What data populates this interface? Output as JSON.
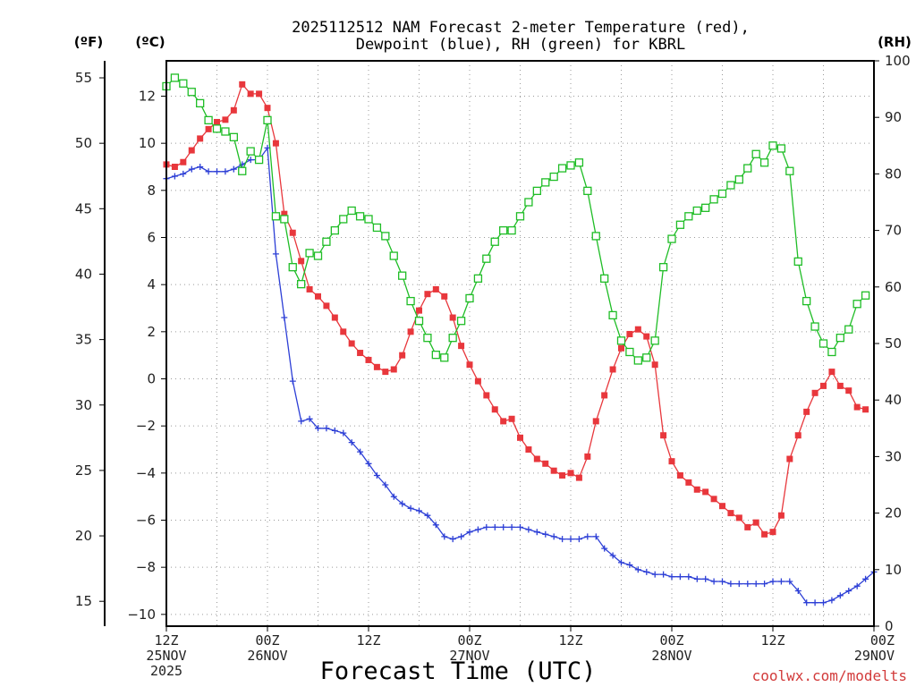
{
  "chart_data": {
    "type": "line",
    "title": [
      "2025112512 NAM Forecast 2-meter Temperature (red),",
      "Dewpoint (blue), RH (green) for KBRL"
    ],
    "xlabel": "Forecast Time (UTC)",
    "units": {
      "fahrenheit": "(ºF)",
      "celsius": "(ºC)",
      "rh": "(RH)"
    },
    "credit": "coolwx.com/modelts",
    "x_hours_range": [
      0,
      84
    ],
    "x_ticks": [
      {
        "hour": 0,
        "lines": [
          "12Z",
          "25NOV",
          "2025"
        ]
      },
      {
        "hour": 12,
        "lines": [
          "00Z",
          "26NOV"
        ]
      },
      {
        "hour": 24,
        "lines": [
          "12Z"
        ]
      },
      {
        "hour": 36,
        "lines": [
          "00Z",
          "27NOV"
        ]
      },
      {
        "hour": 48,
        "lines": [
          "12Z"
        ]
      },
      {
        "hour": 60,
        "lines": [
          "00Z",
          "28NOV"
        ]
      },
      {
        "hour": 72,
        "lines": [
          "12Z"
        ]
      },
      {
        "hour": 84,
        "lines": [
          "00Z",
          "29NOV"
        ]
      }
    ],
    "celsius_axis": {
      "range": [
        -10.5,
        13.5
      ],
      "ticks": [
        -10,
        -8,
        -6,
        -4,
        -2,
        0,
        2,
        4,
        6,
        8,
        10,
        12
      ]
    },
    "fahrenheit_axis": {
      "ticks": [
        15,
        20,
        25,
        30,
        35,
        40,
        45,
        50,
        55
      ]
    },
    "rh_axis": {
      "range": [
        0,
        100
      ],
      "ticks": [
        0,
        10,
        20,
        30,
        40,
        50,
        60,
        70,
        80,
        90,
        100
      ]
    },
    "series": [
      {
        "name": "2-meter Temperature",
        "unit": "°C",
        "color": "#e8373c",
        "marker": "filled-square",
        "values": [
          [
            0,
            9.1
          ],
          [
            1,
            9.0
          ],
          [
            2,
            9.2
          ],
          [
            3,
            9.7
          ],
          [
            4,
            10.2
          ],
          [
            5,
            10.6
          ],
          [
            6,
            10.9
          ],
          [
            7,
            11.0
          ],
          [
            8,
            11.4
          ],
          [
            9,
            12.5
          ],
          [
            10,
            12.1
          ],
          [
            11,
            12.1
          ],
          [
            12,
            11.5
          ],
          [
            13,
            10.0
          ],
          [
            14,
            7.0
          ],
          [
            15,
            6.2
          ],
          [
            16,
            5.0
          ],
          [
            17,
            3.8
          ],
          [
            18,
            3.5
          ],
          [
            19,
            3.1
          ],
          [
            20,
            2.6
          ],
          [
            21,
            2.0
          ],
          [
            22,
            1.5
          ],
          [
            23,
            1.1
          ],
          [
            24,
            0.8
          ],
          [
            25,
            0.5
          ],
          [
            26,
            0.3
          ],
          [
            27,
            0.4
          ],
          [
            28,
            1.0
          ],
          [
            29,
            2.0
          ],
          [
            30,
            2.9
          ],
          [
            31,
            3.6
          ],
          [
            32,
            3.8
          ],
          [
            33,
            3.5
          ],
          [
            34,
            2.6
          ],
          [
            35,
            1.4
          ],
          [
            36,
            0.6
          ],
          [
            37,
            -0.1
          ],
          [
            38,
            -0.7
          ],
          [
            39,
            -1.3
          ],
          [
            40,
            -1.8
          ],
          [
            41,
            -1.7
          ],
          [
            42,
            -2.5
          ],
          [
            43,
            -3.0
          ],
          [
            44,
            -3.4
          ],
          [
            45,
            -3.6
          ],
          [
            46,
            -3.9
          ],
          [
            47,
            -4.1
          ],
          [
            48,
            -4.0
          ],
          [
            49,
            -4.2
          ],
          [
            50,
            -3.3
          ],
          [
            51,
            -1.8
          ],
          [
            52,
            -0.7
          ],
          [
            53,
            0.4
          ],
          [
            54,
            1.3
          ],
          [
            55,
            1.9
          ],
          [
            56,
            2.1
          ],
          [
            57,
            1.8
          ],
          [
            58,
            0.6
          ],
          [
            59,
            -2.4
          ],
          [
            60,
            -3.5
          ],
          [
            61,
            -4.1
          ],
          [
            62,
            -4.4
          ],
          [
            63,
            -4.7
          ],
          [
            64,
            -4.8
          ],
          [
            65,
            -5.1
          ],
          [
            66,
            -5.4
          ],
          [
            67,
            -5.7
          ],
          [
            68,
            -5.9
          ],
          [
            69,
            -6.3
          ],
          [
            70,
            -6.1
          ],
          [
            71,
            -6.6
          ],
          [
            72,
            -6.5
          ],
          [
            73,
            -5.8
          ],
          [
            74,
            -3.4
          ],
          [
            75,
            -2.4
          ],
          [
            76,
            -1.4
          ],
          [
            77,
            -0.6
          ],
          [
            78,
            -0.3
          ],
          [
            79,
            0.3
          ],
          [
            80,
            -0.3
          ],
          [
            81,
            -0.5
          ],
          [
            82,
            -1.2
          ],
          [
            83,
            -1.3
          ]
        ]
      },
      {
        "name": "Dewpoint",
        "unit": "°C",
        "color": "#2d3fd6",
        "marker": "plus",
        "values": [
          [
            0,
            8.5
          ],
          [
            1,
            8.6
          ],
          [
            2,
            8.7
          ],
          [
            3,
            8.9
          ],
          [
            4,
            9.0
          ],
          [
            5,
            8.8
          ],
          [
            6,
            8.8
          ],
          [
            7,
            8.8
          ],
          [
            8,
            8.9
          ],
          [
            9,
            9.1
          ],
          [
            10,
            9.3
          ],
          [
            11,
            9.3
          ],
          [
            12,
            9.8
          ],
          [
            13,
            5.3
          ],
          [
            14,
            2.6
          ],
          [
            15,
            -0.1
          ],
          [
            16,
            -1.8
          ],
          [
            17,
            -1.7
          ],
          [
            18,
            -2.1
          ],
          [
            19,
            -2.1
          ],
          [
            20,
            -2.2
          ],
          [
            21,
            -2.3
          ],
          [
            22,
            -2.7
          ],
          [
            23,
            -3.1
          ],
          [
            24,
            -3.6
          ],
          [
            25,
            -4.1
          ],
          [
            26,
            -4.5
          ],
          [
            27,
            -5.0
          ],
          [
            28,
            -5.3
          ],
          [
            29,
            -5.5
          ],
          [
            30,
            -5.6
          ],
          [
            31,
            -5.8
          ],
          [
            32,
            -6.2
          ],
          [
            33,
            -6.7
          ],
          [
            34,
            -6.8
          ],
          [
            35,
            -6.7
          ],
          [
            36,
            -6.5
          ],
          [
            37,
            -6.4
          ],
          [
            38,
            -6.3
          ],
          [
            39,
            -6.3
          ],
          [
            40,
            -6.3
          ],
          [
            41,
            -6.3
          ],
          [
            42,
            -6.3
          ],
          [
            43,
            -6.4
          ],
          [
            44,
            -6.5
          ],
          [
            45,
            -6.6
          ],
          [
            46,
            -6.7
          ],
          [
            47,
            -6.8
          ],
          [
            48,
            -6.8
          ],
          [
            49,
            -6.8
          ],
          [
            50,
            -6.7
          ],
          [
            51,
            -6.7
          ],
          [
            52,
            -7.2
          ],
          [
            53,
            -7.5
          ],
          [
            54,
            -7.8
          ],
          [
            55,
            -7.9
          ],
          [
            56,
            -8.1
          ],
          [
            57,
            -8.2
          ],
          [
            58,
            -8.3
          ],
          [
            59,
            -8.3
          ],
          [
            60,
            -8.4
          ],
          [
            61,
            -8.4
          ],
          [
            62,
            -8.4
          ],
          [
            63,
            -8.5
          ],
          [
            64,
            -8.5
          ],
          [
            65,
            -8.6
          ],
          [
            66,
            -8.6
          ],
          [
            67,
            -8.7
          ],
          [
            68,
            -8.7
          ],
          [
            69,
            -8.7
          ],
          [
            70,
            -8.7
          ],
          [
            71,
            -8.7
          ],
          [
            72,
            -8.6
          ],
          [
            73,
            -8.6
          ],
          [
            74,
            -8.6
          ],
          [
            75,
            -9.0
          ],
          [
            76,
            -9.5
          ],
          [
            77,
            -9.5
          ],
          [
            78,
            -9.5
          ],
          [
            79,
            -9.4
          ],
          [
            80,
            -9.2
          ],
          [
            81,
            -9.0
          ],
          [
            82,
            -8.8
          ],
          [
            83,
            -8.5
          ],
          [
            84,
            -8.2
          ]
        ]
      },
      {
        "name": "RH",
        "unit": "%",
        "color": "#1fbd26",
        "marker": "open-square",
        "values": [
          [
            0,
            95.5
          ],
          [
            1,
            97
          ],
          [
            2,
            96
          ],
          [
            3,
            94.5
          ],
          [
            4,
            92.5
          ],
          [
            5,
            89.5
          ],
          [
            6,
            88
          ],
          [
            7,
            87.5
          ],
          [
            8,
            86.5
          ],
          [
            9,
            80.5
          ],
          [
            10,
            84
          ],
          [
            11,
            82.5
          ],
          [
            12,
            89.5
          ],
          [
            13,
            72.5
          ],
          [
            14,
            72
          ],
          [
            15,
            63.5
          ],
          [
            16,
            60.5
          ],
          [
            17,
            66
          ],
          [
            18,
            65.5
          ],
          [
            19,
            68
          ],
          [
            20,
            70
          ],
          [
            21,
            72
          ],
          [
            22,
            73.5
          ],
          [
            23,
            72.5
          ],
          [
            24,
            72
          ],
          [
            25,
            70.5
          ],
          [
            26,
            69
          ],
          [
            27,
            65.5
          ],
          [
            28,
            62
          ],
          [
            29,
            57.5
          ],
          [
            30,
            54
          ],
          [
            31,
            51
          ],
          [
            32,
            48
          ],
          [
            33,
            47.5
          ],
          [
            34,
            51
          ],
          [
            35,
            54
          ],
          [
            36,
            58
          ],
          [
            37,
            61.5
          ],
          [
            38,
            65
          ],
          [
            39,
            68
          ],
          [
            40,
            70
          ],
          [
            41,
            70
          ],
          [
            42,
            72.5
          ],
          [
            43,
            75
          ],
          [
            44,
            77
          ],
          [
            45,
            78.5
          ],
          [
            46,
            79.5
          ],
          [
            47,
            81
          ],
          [
            48,
            81.5
          ],
          [
            49,
            82
          ],
          [
            50,
            77
          ],
          [
            51,
            69
          ],
          [
            52,
            61.5
          ],
          [
            53,
            55
          ],
          [
            54,
            50.5
          ],
          [
            55,
            48.5
          ],
          [
            56,
            47
          ],
          [
            57,
            47.5
          ],
          [
            58,
            50.5
          ],
          [
            59,
            63.5
          ],
          [
            60,
            68.5
          ],
          [
            61,
            71
          ],
          [
            62,
            72.5
          ],
          [
            63,
            73.5
          ],
          [
            64,
            74
          ],
          [
            65,
            75.5
          ],
          [
            66,
            76.5
          ],
          [
            67,
            78
          ],
          [
            68,
            79
          ],
          [
            69,
            81
          ],
          [
            70,
            83.5
          ],
          [
            71,
            82
          ],
          [
            72,
            85
          ],
          [
            73,
            84.5
          ],
          [
            74,
            80.5
          ],
          [
            75,
            64.5
          ],
          [
            76,
            57.5
          ],
          [
            77,
            53
          ],
          [
            78,
            50
          ],
          [
            79,
            48.5
          ],
          [
            80,
            51
          ],
          [
            81,
            52.5
          ],
          [
            82,
            57
          ],
          [
            83,
            58.5
          ]
        ]
      }
    ]
  }
}
